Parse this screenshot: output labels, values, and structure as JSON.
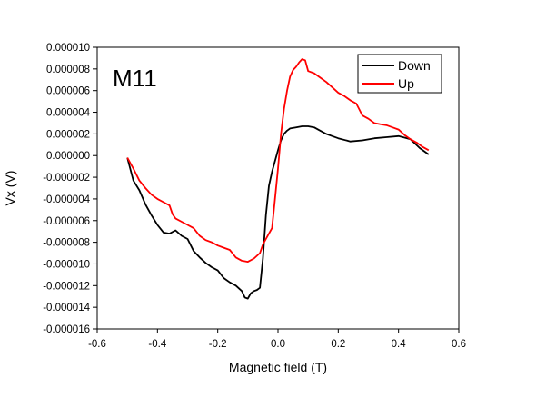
{
  "chart_data": {
    "type": "line",
    "annotation": "M11",
    "xlabel": "Magnetic field (T)",
    "ylabel": "Vx (V)",
    "xlim": [
      -0.6,
      0.6
    ],
    "ylim": [
      -1.6e-05,
      1e-05
    ],
    "xticks": [
      -0.6,
      -0.4,
      -0.2,
      0.0,
      0.2,
      0.4,
      0.6
    ],
    "xtick_labels": [
      "-0.6",
      "-0.4",
      "-0.2",
      "0.0",
      "0.2",
      "0.4",
      "0.6"
    ],
    "yticks": [
      1e-05,
      8e-06,
      6e-06,
      4e-06,
      2e-06,
      0.0,
      -2e-06,
      -4e-06,
      -6e-06,
      -8e-06,
      -1e-05,
      -1.2e-05,
      -1.4e-05,
      -1.6e-05
    ],
    "ytick_labels": [
      "0.000010",
      "0.000008",
      "0.000006",
      "0.000004",
      "0.000002",
      "0.000000",
      "-0.000002",
      "-0.000004",
      "-0.000006",
      "-0.000008",
      "-0.000010",
      "-0.000012",
      "-0.000014",
      "-0.000016"
    ],
    "grid": false,
    "legend_position": "top-right",
    "series": [
      {
        "name": "Down",
        "color": "#000000",
        "x": [
          -0.5,
          -0.48,
          -0.46,
          -0.44,
          -0.42,
          -0.4,
          -0.38,
          -0.36,
          -0.34,
          -0.32,
          -0.3,
          -0.28,
          -0.26,
          -0.24,
          -0.22,
          -0.2,
          -0.18,
          -0.16,
          -0.14,
          -0.12,
          -0.11,
          -0.1,
          -0.09,
          -0.08,
          -0.07,
          -0.06,
          -0.05,
          -0.04,
          -0.03,
          -0.02,
          -0.01,
          0.0,
          0.01,
          0.02,
          0.03,
          0.04,
          0.06,
          0.08,
          0.1,
          0.12,
          0.14,
          0.16,
          0.18,
          0.2,
          0.24,
          0.28,
          0.32,
          0.36,
          0.4,
          0.44,
          0.47,
          0.5
        ],
        "y": [
          -2e-07,
          -2.3e-06,
          -3.2e-06,
          -4.5e-06,
          -5.5e-06,
          -6.4e-06,
          -7.1e-06,
          -7.2e-06,
          -6.9e-06,
          -7.4e-06,
          -7.7e-06,
          -8.8e-06,
          -9.4e-06,
          -9.9e-06,
          -1.03e-05,
          -1.06e-05,
          -1.13e-05,
          -1.17e-05,
          -1.2e-05,
          -1.25e-05,
          -1.31e-05,
          -1.32e-05,
          -1.27e-05,
          -1.25e-05,
          -1.24e-05,
          -1.22e-05,
          -9.5e-06,
          -5.5e-06,
          -2.8e-06,
          -1.5e-06,
          -5e-07,
          5e-07,
          1.4e-06,
          2e-06,
          2.3e-06,
          2.5e-06,
          2.6e-06,
          2.7e-06,
          2.7e-06,
          2.6e-06,
          2.3e-06,
          2e-06,
          1.8e-06,
          1.6e-06,
          1.3e-06,
          1.4e-06,
          1.6e-06,
          1.7e-06,
          1.8e-06,
          1.5e-06,
          7e-07,
          1e-07
        ]
      },
      {
        "name": "Up",
        "color": "#ff0000",
        "x": [
          -0.5,
          -0.48,
          -0.46,
          -0.44,
          -0.42,
          -0.4,
          -0.38,
          -0.36,
          -0.35,
          -0.34,
          -0.32,
          -0.3,
          -0.28,
          -0.26,
          -0.24,
          -0.22,
          -0.2,
          -0.18,
          -0.16,
          -0.14,
          -0.12,
          -0.1,
          -0.08,
          -0.06,
          -0.05,
          -0.04,
          -0.03,
          -0.02,
          -0.01,
          0.0,
          0.01,
          0.02,
          0.03,
          0.04,
          0.05,
          0.06,
          0.07,
          0.08,
          0.09,
          0.1,
          0.12,
          0.14,
          0.16,
          0.18,
          0.2,
          0.22,
          0.24,
          0.26,
          0.28,
          0.3,
          0.32,
          0.34,
          0.36,
          0.38,
          0.4,
          0.42,
          0.44,
          0.46,
          0.48,
          0.5
        ],
        "y": [
          -2e-07,
          -1.2e-06,
          -2.3e-06,
          -3e-06,
          -3.6e-06,
          -4e-06,
          -4.3e-06,
          -4.6e-06,
          -5.4e-06,
          -5.8e-06,
          -6.1e-06,
          -6.4e-06,
          -6.7e-06,
          -7.4e-06,
          -7.8e-06,
          -8e-06,
          -8.3e-06,
          -8.5e-06,
          -8.7e-06,
          -9.4e-06,
          -9.7e-06,
          -9.8e-06,
          -9.5e-06,
          -9e-06,
          -8.2e-06,
          -7.7e-06,
          -7.2e-06,
          -6.7e-06,
          -4e-06,
          -1.2e-06,
          2e-06,
          4.3e-06,
          6e-06,
          7.3e-06,
          7.9e-06,
          8.2e-06,
          8.6e-06,
          8.9e-06,
          8.8e-06,
          7.8e-06,
          7.6e-06,
          7.2e-06,
          6.8e-06,
          6.3e-06,
          5.8e-06,
          5.5e-06,
          5.1e-06,
          4.8e-06,
          3.7e-06,
          3.4e-06,
          3e-06,
          2.9e-06,
          2.8e-06,
          2.6e-06,
          2.4e-06,
          1.9e-06,
          1.5e-06,
          1.2e-06,
          8e-07,
          5e-07
        ]
      }
    ]
  }
}
